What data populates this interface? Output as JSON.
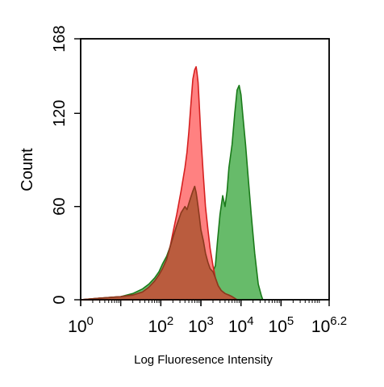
{
  "chart_data": {
    "type": "area",
    "ylabel": "Count",
    "xlabel": "Log Fluoresence Intensity",
    "x_scale": "log",
    "xlim": [
      1,
      1584893
    ],
    "ylim": [
      0,
      168
    ],
    "x_ticks": [
      {
        "value": 1,
        "base": "10",
        "exp": "0"
      },
      {
        "value": 100,
        "base": "10",
        "exp": "2"
      },
      {
        "value": 1000,
        "base": "10",
        "exp": "3"
      },
      {
        "value": 10000,
        "base": "10",
        "exp": "4"
      },
      {
        "value": 100000,
        "base": "10",
        "exp": "5"
      },
      {
        "value": 1584893,
        "base": "10",
        "exp": "6.2"
      }
    ],
    "y_ticks": [
      {
        "value": 0,
        "label": "0"
      },
      {
        "value": 60,
        "label": "60"
      },
      {
        "value": 120,
        "label": "120"
      },
      {
        "value": 168,
        "label": "168"
      }
    ],
    "grid": false,
    "series": [
      {
        "color": "#ff6b6b",
        "stroke": "#d62020",
        "x": [
          1,
          3,
          10,
          20,
          35,
          50,
          70,
          90,
          110,
          140,
          170,
          200,
          250,
          320,
          400,
          450,
          500,
          560,
          630,
          700,
          760,
          800,
          850,
          900,
          1000,
          1150,
          1300,
          1500,
          1700,
          2000,
          2300,
          2700,
          3200,
          4000,
          5000,
          6000,
          8000
        ],
        "y": [
          0,
          1,
          2,
          3,
          5,
          8,
          12,
          16,
          20,
          26,
          34,
          43,
          55,
          70,
          85,
          95,
          108,
          125,
          142,
          148,
          150,
          146,
          140,
          128,
          105,
          80,
          60,
          45,
          33,
          22,
          14,
          9,
          6,
          4,
          3,
          2,
          0
        ]
      },
      {
        "color": "#4caf50",
        "stroke": "#1a7a1a",
        "x": [
          1,
          3,
          10,
          20,
          35,
          50,
          70,
          90,
          110,
          140,
          170,
          200,
          250,
          320,
          400,
          450,
          500,
          560,
          630,
          700,
          760,
          800,
          850,
          900,
          1000,
          1150,
          1300,
          1500,
          1700,
          2000,
          2300,
          2600,
          3000,
          3500,
          4000,
          4500,
          5000,
          6000,
          7000,
          8000,
          9000,
          10000,
          11000,
          13000,
          15000,
          18000,
          22000,
          27000,
          32000,
          35000
        ],
        "y": [
          0,
          1,
          2,
          4,
          7,
          10,
          14,
          18,
          23,
          28,
          34,
          40,
          48,
          56,
          60,
          58,
          62,
          66,
          70,
          73,
          69,
          65,
          60,
          55,
          45,
          38,
          30,
          24,
          20,
          18,
          22,
          38,
          55,
          67,
          60,
          70,
          85,
          100,
          120,
          135,
          138,
          132,
          120,
          100,
          80,
          55,
          30,
          10,
          3,
          0
        ]
      },
      {
        "color": "#b5593a",
        "stroke": "#8a3a1e",
        "x": [
          1,
          3,
          10,
          20,
          35,
          50,
          70,
          90,
          110,
          140,
          170,
          200,
          250,
          320,
          400,
          450,
          500,
          560,
          630,
          700,
          760,
          800,
          850,
          900,
          1000,
          1150,
          1300,
          1500,
          1700,
          2000,
          2300,
          2700,
          3200,
          4000,
          5000,
          6000,
          8000
        ],
        "y": [
          0,
          1,
          2,
          3,
          5,
          8,
          12,
          16,
          20,
          26,
          34,
          40,
          48,
          56,
          60,
          58,
          62,
          66,
          70,
          73,
          69,
          65,
          60,
          55,
          45,
          38,
          30,
          24,
          20,
          18,
          14,
          9,
          6,
          4,
          3,
          2,
          0
        ]
      }
    ]
  }
}
